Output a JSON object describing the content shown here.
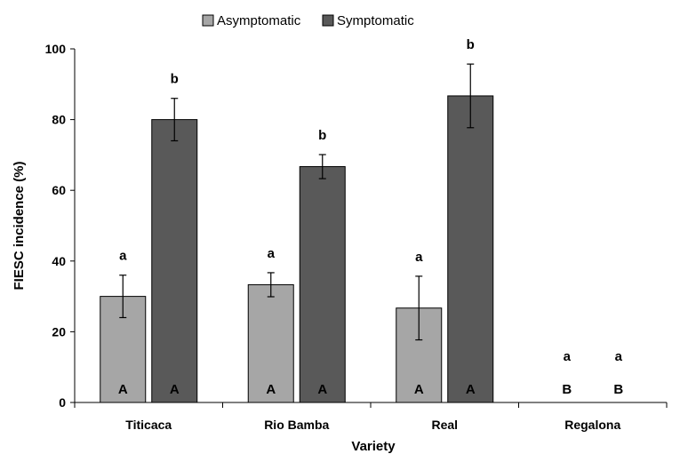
{
  "chart_data": {
    "type": "bar",
    "xlabel": "Variety",
    "ylabel": "FIESC incidence (%)",
    "ylim": [
      0,
      100
    ],
    "yticks": [
      0,
      20,
      40,
      60,
      80,
      100
    ],
    "ytick_labels": [
      "0",
      "20",
      "40",
      "60",
      "80",
      "100"
    ],
    "grid": false,
    "legend_position": "top-center",
    "categories": [
      "Titicaca",
      "Rio Bamba",
      "Real",
      "Regalona"
    ],
    "series": [
      {
        "name": "Asymptomatic",
        "color": "#a6a6a6",
        "values": [
          30,
          33.3,
          26.7,
          0
        ],
        "errors": [
          6,
          3.4,
          9,
          0
        ],
        "sig_upper": [
          "a",
          "a",
          "a",
          "a"
        ],
        "sig_lower": [
          "A",
          "A",
          "A",
          "B"
        ]
      },
      {
        "name": "Symptomatic",
        "color": "#595959",
        "values": [
          80,
          66.7,
          86.7,
          0
        ],
        "errors": [
          6,
          3.4,
          9,
          0
        ],
        "sig_upper": [
          "b",
          "b",
          "b",
          "a"
        ],
        "sig_lower": [
          "A",
          "A",
          "A",
          "B"
        ]
      }
    ]
  }
}
